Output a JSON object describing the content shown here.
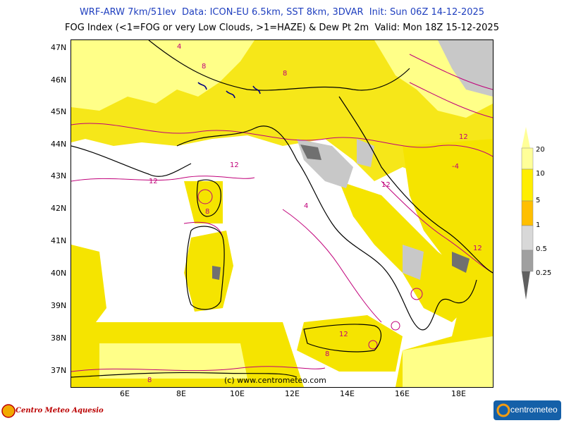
{
  "header": {
    "line1": "WRF-ARW 7km/51lev  Data: ICON-EU 6.5km, SST 8km, 3DVAR  Init: Sun 06Z 14-12-2025",
    "line2": "FOG Index (<1=FOG or very Low Clouds, >1=HAZE) & Dew Pt 2m  Valid: Mon 18Z 15-12-2025"
  },
  "axes": {
    "lat_labels": [
      "47N",
      "46N",
      "45N",
      "44N",
      "43N",
      "42N",
      "41N",
      "40N",
      "39N",
      "38N",
      "37N"
    ],
    "lon_labels": [
      "6E",
      "8E",
      "10E",
      "12E",
      "14E",
      "16E",
      "18E"
    ]
  },
  "legend": {
    "levels": [
      "20",
      "10",
      "5",
      "1",
      "0.5",
      "0.25"
    ],
    "colors": {
      "c20": "#ffff99",
      "c10": "#ffee00",
      "c5": "#ffbf00",
      "c1": "#d8d8d8",
      "c05": "#a0a0a0",
      "c025": "#606060"
    }
  },
  "map": {
    "copyright": "(c) www.centrometeo.com",
    "contour_labels": [
      "4",
      "8",
      "12",
      "-4"
    ],
    "colors": {
      "haze_light": "#ffff88",
      "haze": "#f5e400",
      "fog_light": "#c8c8c8",
      "fog_dark": "#707070",
      "coast": "#000000",
      "dewpoint": "#c0007a",
      "lakes": "#000080"
    }
  },
  "footer": {
    "left_logo": "Centro Meteo Aquesio",
    "right_logo": "centrometeo"
  }
}
